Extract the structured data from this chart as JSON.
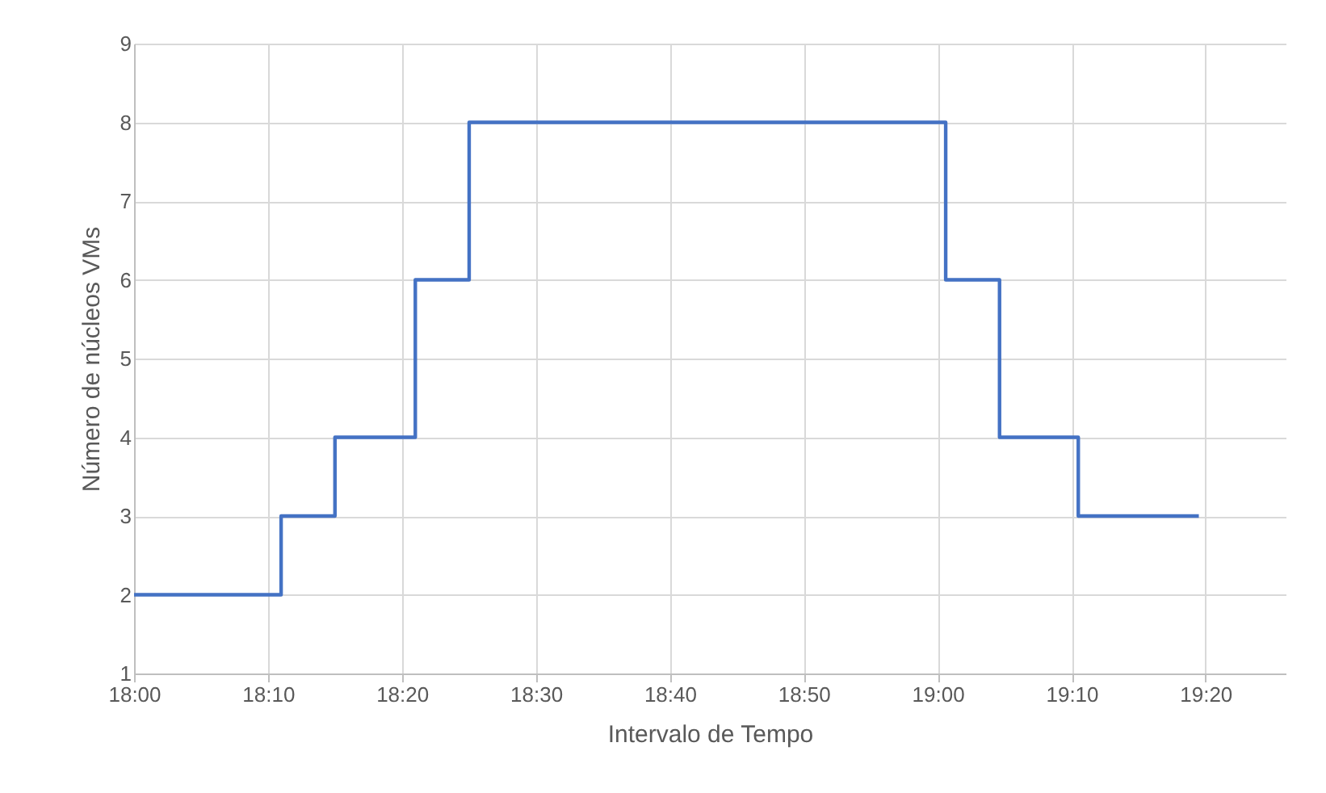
{
  "chart_data": {
    "type": "step",
    "xlabel": "Intervalo de Tempo",
    "ylabel": "Número de núcleos  VMs",
    "x": [
      18,
      18.183,
      18.25,
      18.35,
      18.417,
      19.01,
      19.077,
      19.175,
      19.325
    ],
    "series": [
      {
        "color": "#4472c4",
        "values": [
          2,
          3,
          4,
          6,
          8,
          6,
          4,
          3,
          3
        ]
      }
    ],
    "xlim": [
      18,
      19.433
    ],
    "xticks": [
      {
        "value": 18,
        "label": "18:00"
      },
      {
        "value": 18.1667,
        "label": "18:10"
      },
      {
        "value": 18.3333,
        "label": "18:20"
      },
      {
        "value": 18.5,
        "label": "18:30"
      },
      {
        "value": 18.6667,
        "label": "18:40"
      },
      {
        "value": 18.8333,
        "label": "18:50"
      },
      {
        "value": 19,
        "label": "19:00"
      },
      {
        "value": 19.1667,
        "label": "19:10"
      },
      {
        "value": 19.3333,
        "label": "19:20"
      }
    ],
    "ylim": [
      1,
      9
    ],
    "yticks": [
      1,
      2,
      3,
      4,
      5,
      6,
      7,
      8,
      9
    ],
    "grid": true,
    "line_style": "solid"
  }
}
